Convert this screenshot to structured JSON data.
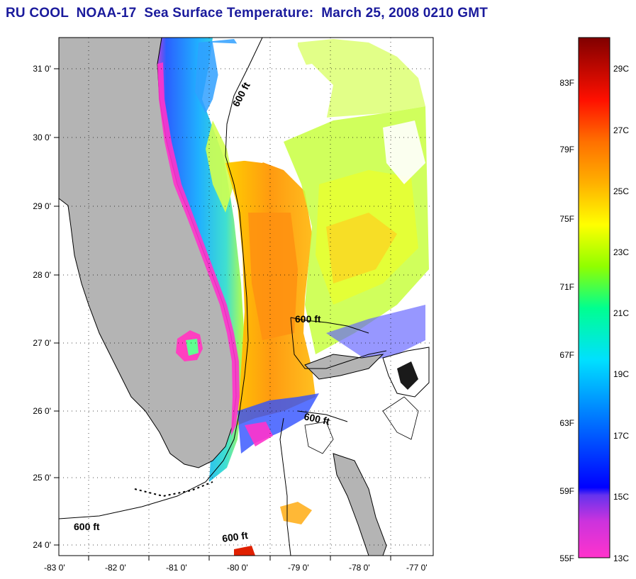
{
  "title": "RU COOL  NOAA-17  Sea Surface Temperature:  March 25, 2008 0210 GMT",
  "map": {
    "lat_ticks": [
      "31 0'",
      "30 0'",
      "29 0'",
      "28 0'",
      "27 0'",
      "26 0'",
      "25 0'",
      "24 0'"
    ],
    "lon_ticks": [
      "-83 0'",
      "-82 0'",
      "-81 0'",
      "-80 0'",
      "-79 0'",
      "-78 0'",
      "-77 0'"
    ],
    "contour_labels": [
      "600 ft",
      "600 ft",
      "600 ft",
      "600 ft",
      "600 ft"
    ],
    "land_color": "#b4b4b4",
    "cloud_color": "#ffffff"
  },
  "colorbar": {
    "fahrenheit_labels": [
      "83F",
      "79F",
      "75F",
      "71F",
      "67F",
      "63F",
      "59F",
      "55F"
    ],
    "celsius_labels": [
      "29C",
      "27C",
      "25C",
      "23C",
      "21C",
      "19C",
      "17C",
      "15C",
      "13C"
    ],
    "stops": [
      "#ff33cc",
      "#9933cc",
      "#0000ff",
      "#00a0ff",
      "#00ffff",
      "#00ff80",
      "#80ff00",
      "#ffff00",
      "#ffb000",
      "#ff7000",
      "#ff0000",
      "#800000"
    ]
  }
}
